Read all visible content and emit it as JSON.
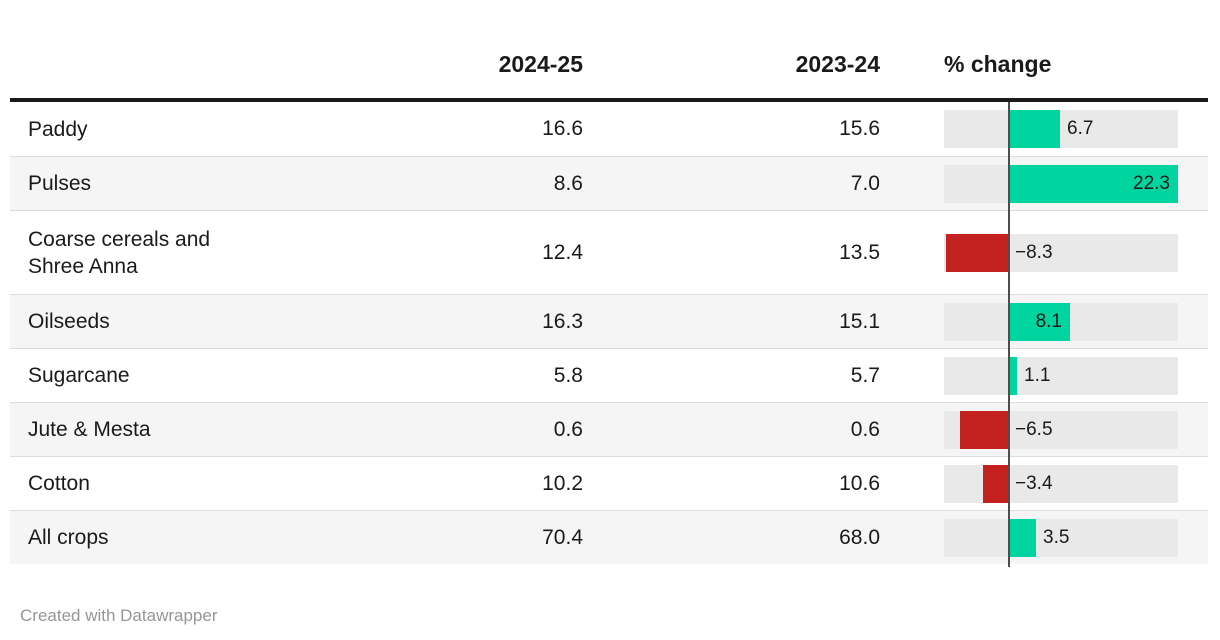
{
  "colors": {
    "positive": "#00d5a0",
    "negative": "#c32020",
    "bar_track": "#e9e9e9",
    "row_stripe": "#f5f5f5",
    "header_rule": "#1a1a1a",
    "zero_axis": "#4d4d4d",
    "text": "#1a1a1a",
    "credit_text": "#969696"
  },
  "header": {
    "year1": "2024-25",
    "year2": "2023-24",
    "change": "% change"
  },
  "chart_data": {
    "type": "table",
    "columns": [
      "",
      "2024-25",
      "2023-24",
      "% change"
    ],
    "bar_axis": {
      "min": -8.6,
      "max": 22.3,
      "zero_line": true
    },
    "rows": [
      {
        "label_lines": [
          "Paddy"
        ],
        "y2024_25": "16.6",
        "y2023_24": "15.6",
        "pct_change": 6.7,
        "pct_label": "6.7",
        "bar_color": "positive",
        "label_pos": "outside"
      },
      {
        "label_lines": [
          "Pulses"
        ],
        "y2024_25": "8.6",
        "y2023_24": "7.0",
        "pct_change": 22.3,
        "pct_label": "22.3",
        "bar_color": "positive",
        "label_pos": "inside"
      },
      {
        "label_lines": [
          "Coarse cereals and",
          "Shree Anna"
        ],
        "y2024_25": "12.4",
        "y2023_24": "13.5",
        "pct_change": -8.3,
        "pct_label": "−8.3",
        "bar_color": "negative",
        "label_pos": "outside"
      },
      {
        "label_lines": [
          "Oilseeds"
        ],
        "y2024_25": "16.3",
        "y2023_24": "15.1",
        "pct_change": 8.1,
        "pct_label": "8.1",
        "bar_color": "positive",
        "label_pos": "inside"
      },
      {
        "label_lines": [
          "Sugarcane"
        ],
        "y2024_25": "5.8",
        "y2023_24": "5.7",
        "pct_change": 1.1,
        "pct_label": "1.1",
        "bar_color": "positive",
        "label_pos": "outside"
      },
      {
        "label_lines": [
          "Jute & Mesta"
        ],
        "y2024_25": "0.6",
        "y2023_24": "0.6",
        "pct_change": -6.5,
        "pct_label": "−6.5",
        "bar_color": "negative",
        "label_pos": "outside"
      },
      {
        "label_lines": [
          "Cotton"
        ],
        "y2024_25": "10.2",
        "y2023_24": "10.6",
        "pct_change": -3.4,
        "pct_label": "−3.4",
        "bar_color": "negative",
        "label_pos": "outside"
      },
      {
        "label_lines": [
          "All crops"
        ],
        "y2024_25": "70.4",
        "y2023_24": "68.0",
        "pct_change": 3.5,
        "pct_label": "3.5",
        "bar_color": "positive",
        "label_pos": "outside"
      }
    ]
  },
  "footer": {
    "credit": "Created with Datawrapper"
  }
}
